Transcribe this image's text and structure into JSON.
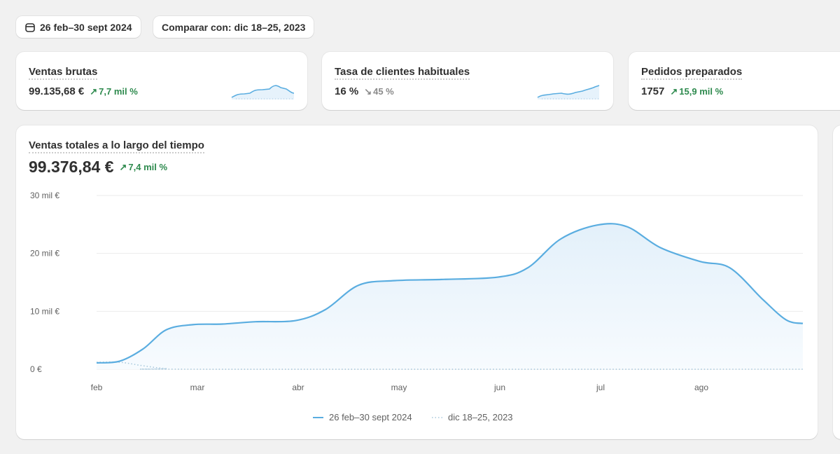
{
  "toolbar": {
    "date_range": "26 feb–30 sept 2024",
    "compare": "Comparar con: dic 18–25, 2023",
    "calendar_icon": "calendar-icon"
  },
  "metrics": [
    {
      "title": "Ventas brutas",
      "value": "99.135,68 €",
      "change": "7,7 mil %",
      "direction": "up"
    },
    {
      "title": "Tasa de clientes habituales",
      "value": "16 %",
      "change": "45 %",
      "direction": "down"
    },
    {
      "title": "Pedidos preparados",
      "value": "1757",
      "change": "15,9 mil %",
      "direction": "up"
    }
  ],
  "main_chart": {
    "title": "Ventas totales a lo largo del tiempo",
    "value": "99.376,84 €",
    "change": "7,4 mil %"
  },
  "colors": {
    "primary": "#5aade0",
    "comparison": "#a8c8dc",
    "positive": "#2e8a4e"
  },
  "chart_data": {
    "type": "line",
    "y_ticks": [
      "0 €",
      "10 mil €",
      "20 mil €",
      "30 mil €"
    ],
    "ylim": [
      0,
      30000
    ],
    "x_ticks": [
      "feb",
      "mar",
      "abr",
      "may",
      "jun",
      "jul",
      "ago"
    ],
    "legend": [
      "26 feb–30 sept 2024",
      "dic 18–25, 2023"
    ],
    "legend_position": "bottom",
    "grid": true,
    "series": [
      {
        "name": "26 feb–30 sept 2024",
        "points": [
          [
            "2024-02-01",
            1100
          ],
          [
            "2024-02-08",
            1400
          ],
          [
            "2024-02-15",
            3500
          ],
          [
            "2024-02-22",
            6800
          ],
          [
            "2024-03-01",
            7700
          ],
          [
            "2024-03-10",
            7800
          ],
          [
            "2024-03-20",
            8200
          ],
          [
            "2024-04-01",
            8400
          ],
          [
            "2024-04-10",
            10300
          ],
          [
            "2024-04-20",
            14500
          ],
          [
            "2024-05-01",
            15300
          ],
          [
            "2024-05-15",
            15500
          ],
          [
            "2024-06-01",
            15900
          ],
          [
            "2024-06-10",
            17500
          ],
          [
            "2024-06-20",
            22500
          ],
          [
            "2024-07-01",
            24900
          ],
          [
            "2024-07-10",
            24600
          ],
          [
            "2024-07-20",
            21000
          ],
          [
            "2024-08-01",
            18600
          ],
          [
            "2024-08-10",
            17500
          ],
          [
            "2024-08-20",
            12000
          ],
          [
            "2024-08-27",
            8500
          ],
          [
            "2024-09-01",
            7900
          ]
        ]
      },
      {
        "name": "dic 18–25, 2023",
        "points": [
          [
            "2024-02-01",
            1200
          ],
          [
            "2024-02-08",
            1200
          ],
          [
            "2024-02-15",
            600
          ],
          [
            "2024-02-22",
            100
          ],
          [
            "2024-03-01",
            0
          ],
          [
            "2024-09-01",
            0
          ]
        ]
      }
    ]
  }
}
